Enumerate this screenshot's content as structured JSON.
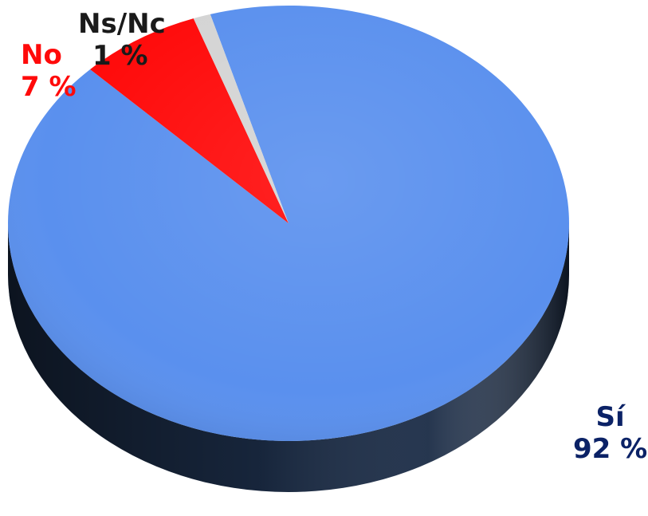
{
  "chart_data": {
    "type": "pie",
    "style": "3d",
    "title": "",
    "slices": [
      {
        "label": "Sí",
        "value": 92,
        "display": "92 %",
        "color": "#5a90ee",
        "side_color": "#1b2c46"
      },
      {
        "label": "No",
        "value": 7,
        "display": "7 %",
        "color": "#ff0a0a",
        "side_color": "#8a0a0a"
      },
      {
        "label": "Ns/Nc",
        "value": 1,
        "display": "1 %",
        "color": "#d4d4d4",
        "side_color": "#8c8c8c"
      }
    ],
    "label_colors": {
      "Sí": "#0b2266",
      "No": "#ff0a0a",
      "Ns/Nc": "#1a1a1a"
    },
    "legend": "none"
  }
}
